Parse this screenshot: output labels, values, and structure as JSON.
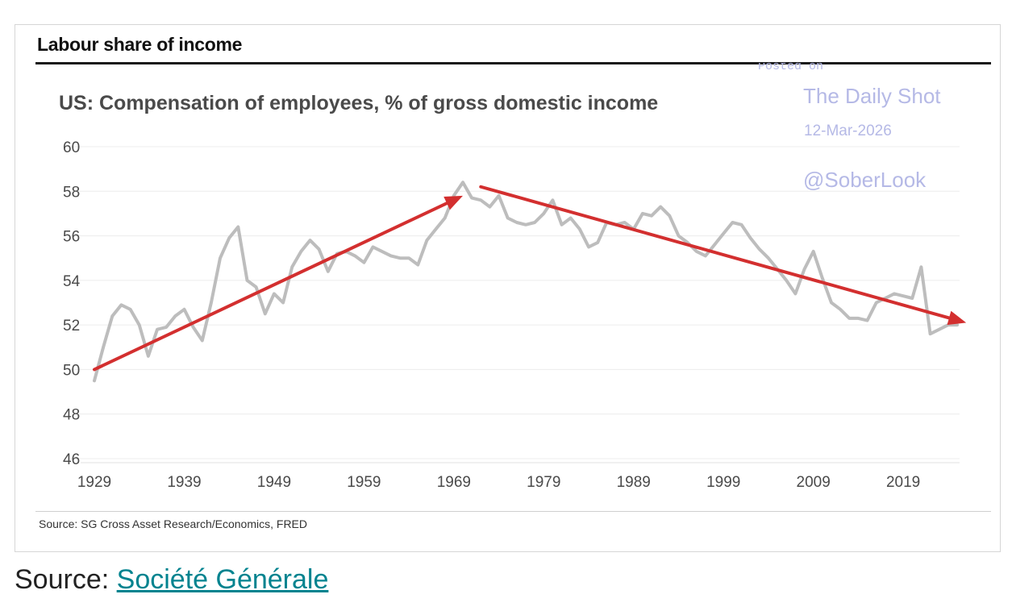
{
  "header": {
    "title": "Labour share of income"
  },
  "watermark": {
    "posted": "Posted on",
    "site": "The Daily Shot",
    "date": "12-Mar-2026",
    "handle": "@SoberLook"
  },
  "chart_data": {
    "type": "line",
    "title": "US: Compensation of employees, % of gross domestic income",
    "xlabel": "",
    "ylabel": "",
    "ylim": [
      46,
      60
    ],
    "xlim": [
      1929,
      2025
    ],
    "yticks": [
      60,
      58,
      56,
      54,
      52,
      50,
      48,
      46
    ],
    "xticks": [
      "1929",
      "1939",
      "1949",
      "1959",
      "1969",
      "1979",
      "1989",
      "1999",
      "2009",
      "2019"
    ],
    "grid": true,
    "series": [
      {
        "color": "#bdbdbd",
        "x": [
          1929,
          1930,
          1931,
          1932,
          1933,
          1934,
          1935,
          1936,
          1937,
          1938,
          1939,
          1940,
          1941,
          1942,
          1943,
          1944,
          1945,
          1946,
          1947,
          1948,
          1949,
          1950,
          1951,
          1952,
          1953,
          1954,
          1955,
          1956,
          1957,
          1958,
          1959,
          1960,
          1961,
          1962,
          1963,
          1964,
          1965,
          1966,
          1967,
          1968,
          1969,
          1970,
          1971,
          1972,
          1973,
          1974,
          1975,
          1976,
          1977,
          1978,
          1979,
          1980,
          1981,
          1982,
          1983,
          1984,
          1985,
          1986,
          1987,
          1988,
          1989,
          1990,
          1991,
          1992,
          1993,
          1994,
          1995,
          1996,
          1997,
          1998,
          1999,
          2000,
          2001,
          2002,
          2003,
          2004,
          2005,
          2006,
          2007,
          2008,
          2009,
          2010,
          2011,
          2012,
          2013,
          2014,
          2015,
          2016,
          2017,
          2018,
          2019,
          2020,
          2021,
          2022,
          2023,
          2024,
          2025
        ],
        "y": [
          49.5,
          51.0,
          52.4,
          52.9,
          52.7,
          52.0,
          50.6,
          51.8,
          51.9,
          52.4,
          52.7,
          51.9,
          51.3,
          53.0,
          55.0,
          55.9,
          56.4,
          54.0,
          53.7,
          52.5,
          53.4,
          53.0,
          54.6,
          55.3,
          55.8,
          55.4,
          54.4,
          55.2,
          55.3,
          55.1,
          54.8,
          55.5,
          55.3,
          55.1,
          55.0,
          55.0,
          54.7,
          55.8,
          56.3,
          56.8,
          57.8,
          58.4,
          57.7,
          57.6,
          57.3,
          57.8,
          56.8,
          56.6,
          56.5,
          56.6,
          57.0,
          57.6,
          56.5,
          56.8,
          56.3,
          55.5,
          55.7,
          56.6,
          56.5,
          56.6,
          56.3,
          57.0,
          56.9,
          57.3,
          56.9,
          56.0,
          55.7,
          55.3,
          55.1,
          55.6,
          56.1,
          56.6,
          56.5,
          55.9,
          55.4,
          55.0,
          54.5,
          54.0,
          53.4,
          54.5,
          55.3,
          54.1,
          53.0,
          52.7,
          52.3,
          52.3,
          52.2,
          53.0,
          53.2,
          53.4,
          53.3,
          53.2,
          54.6,
          51.6,
          51.8,
          52.0,
          52.0
        ]
      }
    ],
    "trend_arrows": [
      {
        "color": "#d32f2f",
        "from": [
          1929,
          50.0
        ],
        "to": [
          1970,
          57.8
        ]
      },
      {
        "color": "#d32f2f",
        "from": [
          1972,
          58.2
        ],
        "to": [
          2026,
          52.1
        ]
      }
    ],
    "source": "Source: SG Cross Asset Research/Economics, FRED"
  },
  "page_source": {
    "label": "Source:",
    "link_text": "Société Générale",
    "link_color": "#00838f"
  }
}
